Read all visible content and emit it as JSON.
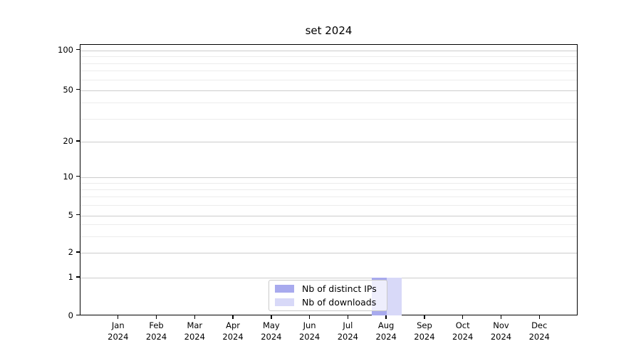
{
  "figure": {
    "title": "set 2024"
  },
  "y_axis": {
    "tick_labels": [
      "100",
      "50",
      "20",
      "10",
      "5",
      "2",
      "1",
      "0"
    ],
    "tick_values": [
      100,
      50,
      20,
      10,
      5,
      2,
      1,
      0
    ],
    "major_gridlines": [
      100,
      50,
      20,
      10,
      5,
      2,
      1
    ],
    "minor_gridlines": [
      90,
      80,
      70,
      60,
      40,
      30,
      9,
      8,
      7,
      6,
      4,
      3
    ]
  },
  "x_axis": {
    "categories": [
      {
        "month": "Jan",
        "year": "2024"
      },
      {
        "month": "Feb",
        "year": "2024"
      },
      {
        "month": "Mar",
        "year": "2024"
      },
      {
        "month": "Apr",
        "year": "2024"
      },
      {
        "month": "May",
        "year": "2024"
      },
      {
        "month": "Jun",
        "year": "2024"
      },
      {
        "month": "Jul",
        "year": "2024"
      },
      {
        "month": "Aug",
        "year": "2024"
      },
      {
        "month": "Sep",
        "year": "2024"
      },
      {
        "month": "Oct",
        "year": "2024"
      },
      {
        "month": "Nov",
        "year": "2024"
      },
      {
        "month": "Dec",
        "year": "2024"
      }
    ]
  },
  "legend": {
    "items": [
      {
        "label": "Nb of distinct IPs",
        "color": "#a8aaee"
      },
      {
        "label": "Nb of downloads",
        "color": "#d8d9f8"
      }
    ]
  },
  "chart_data": {
    "type": "bar",
    "title": "set 2024",
    "categories": [
      "Jan 2024",
      "Feb 2024",
      "Mar 2024",
      "Apr 2024",
      "May 2024",
      "Jun 2024",
      "Jul 2024",
      "Aug 2024",
      "Sep 2024",
      "Oct 2024",
      "Nov 2024",
      "Dec 2024"
    ],
    "series": [
      {
        "name": "Nb of distinct IPs",
        "color": "#a8aaee",
        "values": [
          0,
          0,
          0,
          0,
          0,
          0,
          0,
          1,
          0,
          0,
          0,
          0
        ]
      },
      {
        "name": "Nb of downloads",
        "color": "#d8d9f8",
        "values": [
          0,
          0,
          0,
          0,
          0,
          0,
          0,
          1,
          0,
          0,
          0,
          0
        ]
      }
    ],
    "xlabel": "",
    "ylabel": "",
    "y_ticks": [
      0,
      1,
      2,
      5,
      10,
      20,
      50,
      100
    ],
    "y_scale": "log-like (linear 0-1 segment, logarithmic 1-100)",
    "ylim": [
      0,
      110
    ],
    "grid": "horizontal major and log-minor gridlines",
    "legend_position": "lower center inside plot",
    "bar_layout": "grouped side-by-side, centered on month tick"
  },
  "colors": {
    "major_grid": "#cccccc",
    "minor_grid": "#ececec",
    "spine": "#000000",
    "legend_border": "#c9c9c9",
    "background": "#ffffff"
  }
}
